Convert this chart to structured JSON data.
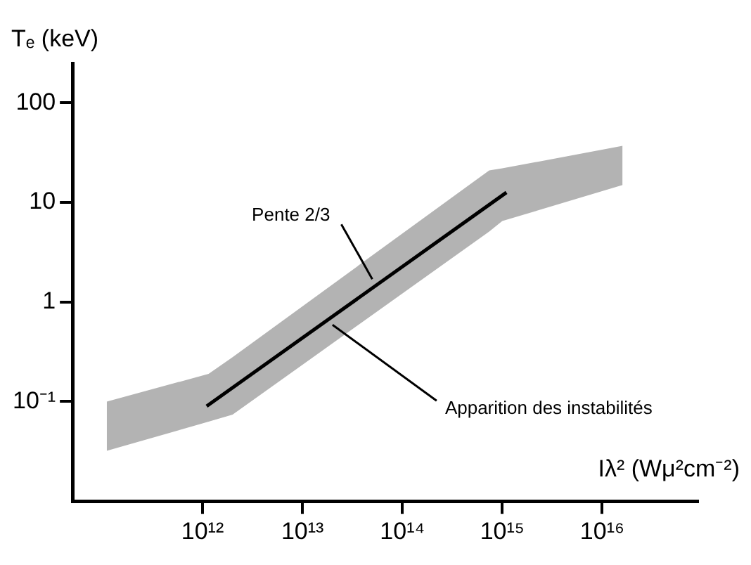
{
  "chart_data": {
    "type": "line",
    "xlabel": "Iλ² (Wμ²cm⁻²)",
    "ylabel": "Tₑ (keV)",
    "log": "xy",
    "grid": false,
    "legend": false,
    "xlim": [
      50000000000.0,
      9e+16
    ],
    "ylim": [
      0.01,
      250
    ],
    "xticks": [
      {
        "value": 1000000000000.0,
        "label": "10¹²"
      },
      {
        "value": 10000000000000.0,
        "label": "10¹³"
      },
      {
        "value": 100000000000000.0,
        "label": "10¹⁴"
      },
      {
        "value": 1000000000000000.0,
        "label": "10¹⁵"
      },
      {
        "value": 1e+16,
        "label": "10¹⁶"
      }
    ],
    "yticks": [
      {
        "value": 0.1,
        "label": "10⁻¹"
      },
      1,
      10,
      100
    ],
    "series": [
      {
        "type": "area",
        "color": "#b3b3b3",
        "x": [
          110000000000.0,
          1150000000000.0,
          2000000000000.0,
          740000000000000.0,
          1000000000000000.0,
          1.6e+16
        ],
        "values": [
          null,
          null,
          null,
          null,
          null,
          null
        ],
        "lower": [
          0.032,
          0.063,
          0.074,
          5.1,
          6.5,
          15
        ],
        "upper": [
          0.1,
          0.19,
          0.28,
          21,
          22,
          37
        ]
      },
      {
        "color": "#000000",
        "x": [
          1100000000000.0,
          1100000000000000.0
        ],
        "values": [
          0.09,
          12.6
        ]
      }
    ],
    "annotations": [
      {
        "text": "Pente 2/3",
        "x": 50000000000000.0,
        "y": 1.7
      },
      {
        "text": "Apparition des instabilités",
        "x": 20000000000000.0,
        "y": 0.59
      }
    ]
  }
}
